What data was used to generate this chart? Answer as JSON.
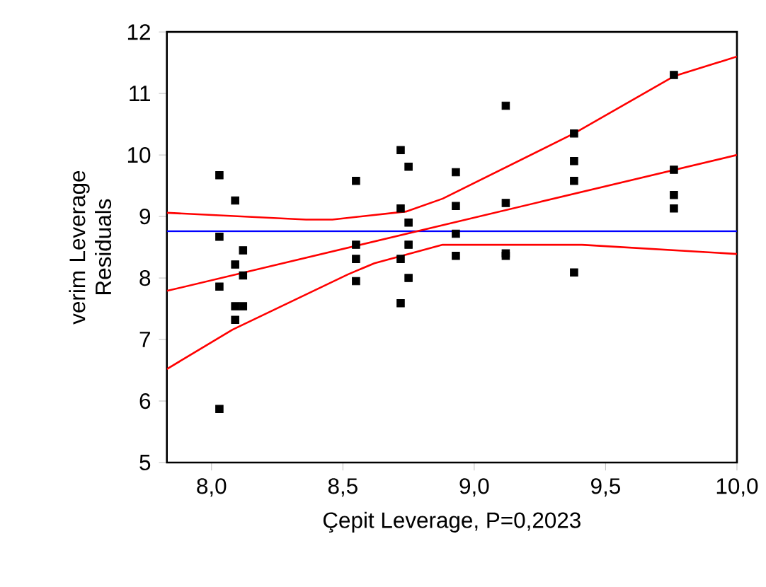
{
  "chart_data": {
    "type": "scatter",
    "xlabel": "Çepit Leverage, P=0,2023",
    "ylabel": "verim Leverage Residuals",
    "xlim": [
      7.83,
      10.0
    ],
    "ylim": [
      5,
      12
    ],
    "xticks": [
      {
        "value": 8.0,
        "label": "8,0"
      },
      {
        "value": 8.5,
        "label": "8,5"
      },
      {
        "value": 9.0,
        "label": "9,0"
      },
      {
        "value": 9.5,
        "label": "9,5"
      },
      {
        "value": 10.0,
        "label": "10,0"
      }
    ],
    "yticks": [
      5,
      6,
      7,
      8,
      9,
      10,
      11,
      12
    ],
    "grid": false,
    "ref_lines": [
      {
        "axis": "y",
        "value": 8.76,
        "color": "#0000ff"
      }
    ],
    "series": [
      {
        "color": "#000000",
        "marker": "square",
        "x": [
          8.03,
          8.03,
          8.03,
          8.03,
          8.09,
          8.09,
          8.09,
          8.09,
          8.12,
          8.12,
          8.12,
          8.55,
          8.55,
          8.55,
          8.55,
          8.72,
          8.72,
          8.72,
          8.72,
          8.75,
          8.75,
          8.75,
          8.75,
          8.93,
          8.93,
          8.93,
          8.93,
          9.12,
          9.12,
          9.12,
          9.12,
          9.38,
          9.38,
          9.38,
          9.38,
          9.76,
          9.76,
          9.76,
          9.76
        ],
        "values": [
          9.67,
          8.67,
          7.86,
          5.87,
          9.26,
          8.22,
          7.54,
          7.32,
          8.45,
          8.04,
          7.54,
          9.58,
          8.54,
          8.31,
          7.95,
          10.08,
          9.13,
          8.31,
          7.59,
          9.81,
          8.9,
          8.54,
          8.0,
          9.72,
          9.17,
          8.72,
          8.36,
          10.8,
          9.22,
          8.4,
          8.36,
          10.35,
          9.9,
          9.58,
          8.09,
          11.3,
          9.76,
          9.35,
          9.13
        ]
      },
      {
        "type": "line",
        "color": "#ff0000",
        "marker": "none",
        "line_style": "solid",
        "x": [
          7.83,
          10.0
        ],
        "values": [
          7.79,
          10.0
        ]
      },
      {
        "type": "line",
        "color": "#ff0000",
        "marker": "none",
        "line_style": "solid",
        "x": [
          7.83,
          8.36,
          8.46,
          8.74,
          8.88,
          9.38,
          9.76,
          10.0
        ],
        "values": [
          9.06,
          8.95,
          8.95,
          9.08,
          9.29,
          10.35,
          11.28,
          11.6
        ]
      },
      {
        "type": "line",
        "color": "#ff0000",
        "marker": "none",
        "line_style": "solid",
        "x": [
          7.83,
          8.08,
          8.52,
          8.62,
          8.88,
          9.41,
          10.0
        ],
        "values": [
          6.52,
          7.16,
          8.06,
          8.24,
          8.54,
          8.54,
          8.39
        ]
      }
    ]
  }
}
